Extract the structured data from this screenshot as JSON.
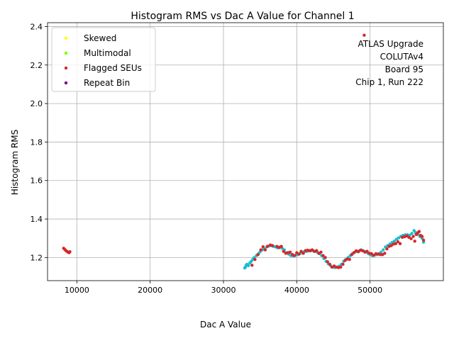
{
  "chart_data": {
    "type": "scatter",
    "title": "Histogram RMS vs Dac A Value for Channel 1",
    "xlabel": "Dac A Value",
    "ylabel": "Histogram RMS",
    "xlim": [
      6000,
      60000
    ],
    "ylim": [
      1.08,
      2.42
    ],
    "x_ticks": [
      10000,
      20000,
      30000,
      40000,
      50000
    ],
    "y_ticks": [
      1.2,
      1.4,
      1.6,
      1.8,
      2.0,
      2.2,
      2.4
    ],
    "grid": true,
    "legend_position": "top-left",
    "annotation": [
      "ATLAS Upgrade",
      "COLUTAv4",
      "Board 95",
      "Chip 1, Run 222"
    ],
    "annotation_position": "top-right",
    "legend": [
      {
        "label": "Skewed",
        "color": "#ffff00"
      },
      {
        "label": "Multimodal",
        "color": "#7cfc00"
      },
      {
        "label": "Flagged SEUs",
        "color": "#d62728"
      },
      {
        "label": "Repeat Bin",
        "color": "#800080"
      }
    ],
    "base_color": "#17becf",
    "base_points": [
      [
        32900,
        1.146
      ],
      [
        33000,
        1.15
      ],
      [
        33100,
        1.16
      ],
      [
        33200,
        1.165
      ],
      [
        33400,
        1.158
      ],
      [
        33600,
        1.172
      ],
      [
        33800,
        1.18
      ],
      [
        34000,
        1.19
      ],
      [
        34200,
        1.2
      ],
      [
        34500,
        1.21
      ],
      [
        34800,
        1.22
      ],
      [
        35000,
        1.23
      ],
      [
        35300,
        1.24
      ],
      [
        35600,
        1.245
      ],
      [
        35900,
        1.255
      ],
      [
        36200,
        1.26
      ],
      [
        36500,
        1.262
      ],
      [
        36800,
        1.258
      ],
      [
        37100,
        1.255
      ],
      [
        37400,
        1.25
      ],
      [
        37700,
        1.255
      ],
      [
        38000,
        1.248
      ],
      [
        38300,
        1.24
      ],
      [
        38600,
        1.225
      ],
      [
        38900,
        1.218
      ],
      [
        39200,
        1.21
      ],
      [
        39500,
        1.208
      ],
      [
        39800,
        1.212
      ],
      [
        40100,
        1.215
      ],
      [
        40400,
        1.22
      ],
      [
        40700,
        1.225
      ],
      [
        41000,
        1.23
      ],
      [
        41300,
        1.232
      ],
      [
        41600,
        1.234
      ],
      [
        41900,
        1.235
      ],
      [
        42200,
        1.236
      ],
      [
        42500,
        1.232
      ],
      [
        42800,
        1.228
      ],
      [
        43100,
        1.22
      ],
      [
        43400,
        1.21
      ],
      [
        43700,
        1.195
      ],
      [
        44000,
        1.18
      ],
      [
        44300,
        1.168
      ],
      [
        44600,
        1.158
      ],
      [
        44900,
        1.15
      ],
      [
        45200,
        1.148
      ],
      [
        45500,
        1.15
      ],
      [
        45800,
        1.155
      ],
      [
        46100,
        1.165
      ],
      [
        46400,
        1.18
      ],
      [
        46700,
        1.19
      ],
      [
        47000,
        1.2
      ],
      [
        47300,
        1.21
      ],
      [
        47600,
        1.22
      ],
      [
        47900,
        1.228
      ],
      [
        48200,
        1.232
      ],
      [
        48500,
        1.235
      ],
      [
        48800,
        1.24
      ],
      [
        49100,
        1.235
      ],
      [
        49400,
        1.23
      ],
      [
        49700,
        1.222
      ],
      [
        50000,
        1.215
      ],
      [
        50300,
        1.21
      ],
      [
        50600,
        1.212
      ],
      [
        50900,
        1.215
      ],
      [
        51200,
        1.22
      ],
      [
        51500,
        1.228
      ],
      [
        51800,
        1.24
      ],
      [
        52100,
        1.255
      ],
      [
        52400,
        1.262
      ],
      [
        52700,
        1.27
      ],
      [
        53000,
        1.278
      ],
      [
        53300,
        1.285
      ],
      [
        53600,
        1.295
      ],
      [
        53900,
        1.302
      ],
      [
        54200,
        1.31
      ],
      [
        54500,
        1.315
      ],
      [
        54800,
        1.318
      ],
      [
        55100,
        1.318
      ],
      [
        55400,
        1.316
      ],
      [
        55700,
        1.325
      ],
      [
        56000,
        1.34
      ],
      [
        56200,
        1.33
      ],
      [
        56500,
        1.32
      ],
      [
        56800,
        1.31
      ],
      [
        57100,
        1.3
      ],
      [
        57300,
        1.28
      ]
    ],
    "flagged_points": [
      [
        8200,
        1.248
      ],
      [
        8350,
        1.242
      ],
      [
        8500,
        1.236
      ],
      [
        8650,
        1.232
      ],
      [
        8800,
        1.228
      ],
      [
        8950,
        1.225
      ],
      [
        9050,
        1.23
      ],
      [
        33900,
        1.16
      ],
      [
        34300,
        1.19
      ],
      [
        34700,
        1.215
      ],
      [
        35100,
        1.24
      ],
      [
        35400,
        1.256
      ],
      [
        35700,
        1.24
      ],
      [
        36000,
        1.258
      ],
      [
        36400,
        1.265
      ],
      [
        36700,
        1.262
      ],
      [
        37300,
        1.258
      ],
      [
        37600,
        1.252
      ],
      [
        37900,
        1.258
      ],
      [
        38200,
        1.232
      ],
      [
        38500,
        1.222
      ],
      [
        38800,
        1.225
      ],
      [
        39100,
        1.228
      ],
      [
        39400,
        1.216
      ],
      [
        39700,
        1.21
      ],
      [
        40000,
        1.225
      ],
      [
        40300,
        1.218
      ],
      [
        40600,
        1.232
      ],
      [
        40900,
        1.222
      ],
      [
        41200,
        1.236
      ],
      [
        41500,
        1.238
      ],
      [
        41800,
        1.236
      ],
      [
        42100,
        1.24
      ],
      [
        42400,
        1.232
      ],
      [
        42700,
        1.236
      ],
      [
        43000,
        1.222
      ],
      [
        43300,
        1.228
      ],
      [
        43600,
        1.21
      ],
      [
        43900,
        1.2
      ],
      [
        44200,
        1.178
      ],
      [
        44500,
        1.165
      ],
      [
        44800,
        1.15
      ],
      [
        45100,
        1.156
      ],
      [
        45400,
        1.15
      ],
      [
        45700,
        1.148
      ],
      [
        46000,
        1.15
      ],
      [
        46300,
        1.165
      ],
      [
        46600,
        1.185
      ],
      [
        46900,
        1.192
      ],
      [
        47200,
        1.19
      ],
      [
        47500,
        1.215
      ],
      [
        47800,
        1.225
      ],
      [
        48100,
        1.235
      ],
      [
        48400,
        1.23
      ],
      [
        48700,
        1.238
      ],
      [
        49000,
        1.235
      ],
      [
        49300,
        1.228
      ],
      [
        49600,
        1.232
      ],
      [
        49900,
        1.222
      ],
      [
        50200,
        1.22
      ],
      [
        50500,
        1.212
      ],
      [
        50800,
        1.22
      ],
      [
        51100,
        1.218
      ],
      [
        51400,
        1.215
      ],
      [
        51700,
        1.215
      ],
      [
        52000,
        1.222
      ],
      [
        52300,
        1.245
      ],
      [
        52600,
        1.258
      ],
      [
        52900,
        1.262
      ],
      [
        53200,
        1.27
      ],
      [
        53500,
        1.272
      ],
      [
        53800,
        1.282
      ],
      [
        54100,
        1.272
      ],
      [
        54400,
        1.305
      ],
      [
        54700,
        1.308
      ],
      [
        55000,
        1.312
      ],
      [
        55300,
        1.305
      ],
      [
        55600,
        1.298
      ],
      [
        55900,
        1.31
      ],
      [
        56100,
        1.285
      ],
      [
        56300,
        1.32
      ],
      [
        56500,
        1.328
      ],
      [
        56700,
        1.335
      ],
      [
        56900,
        1.315
      ],
      [
        57100,
        1.31
      ],
      [
        57300,
        1.29
      ],
      [
        49200,
        2.355
      ]
    ]
  }
}
